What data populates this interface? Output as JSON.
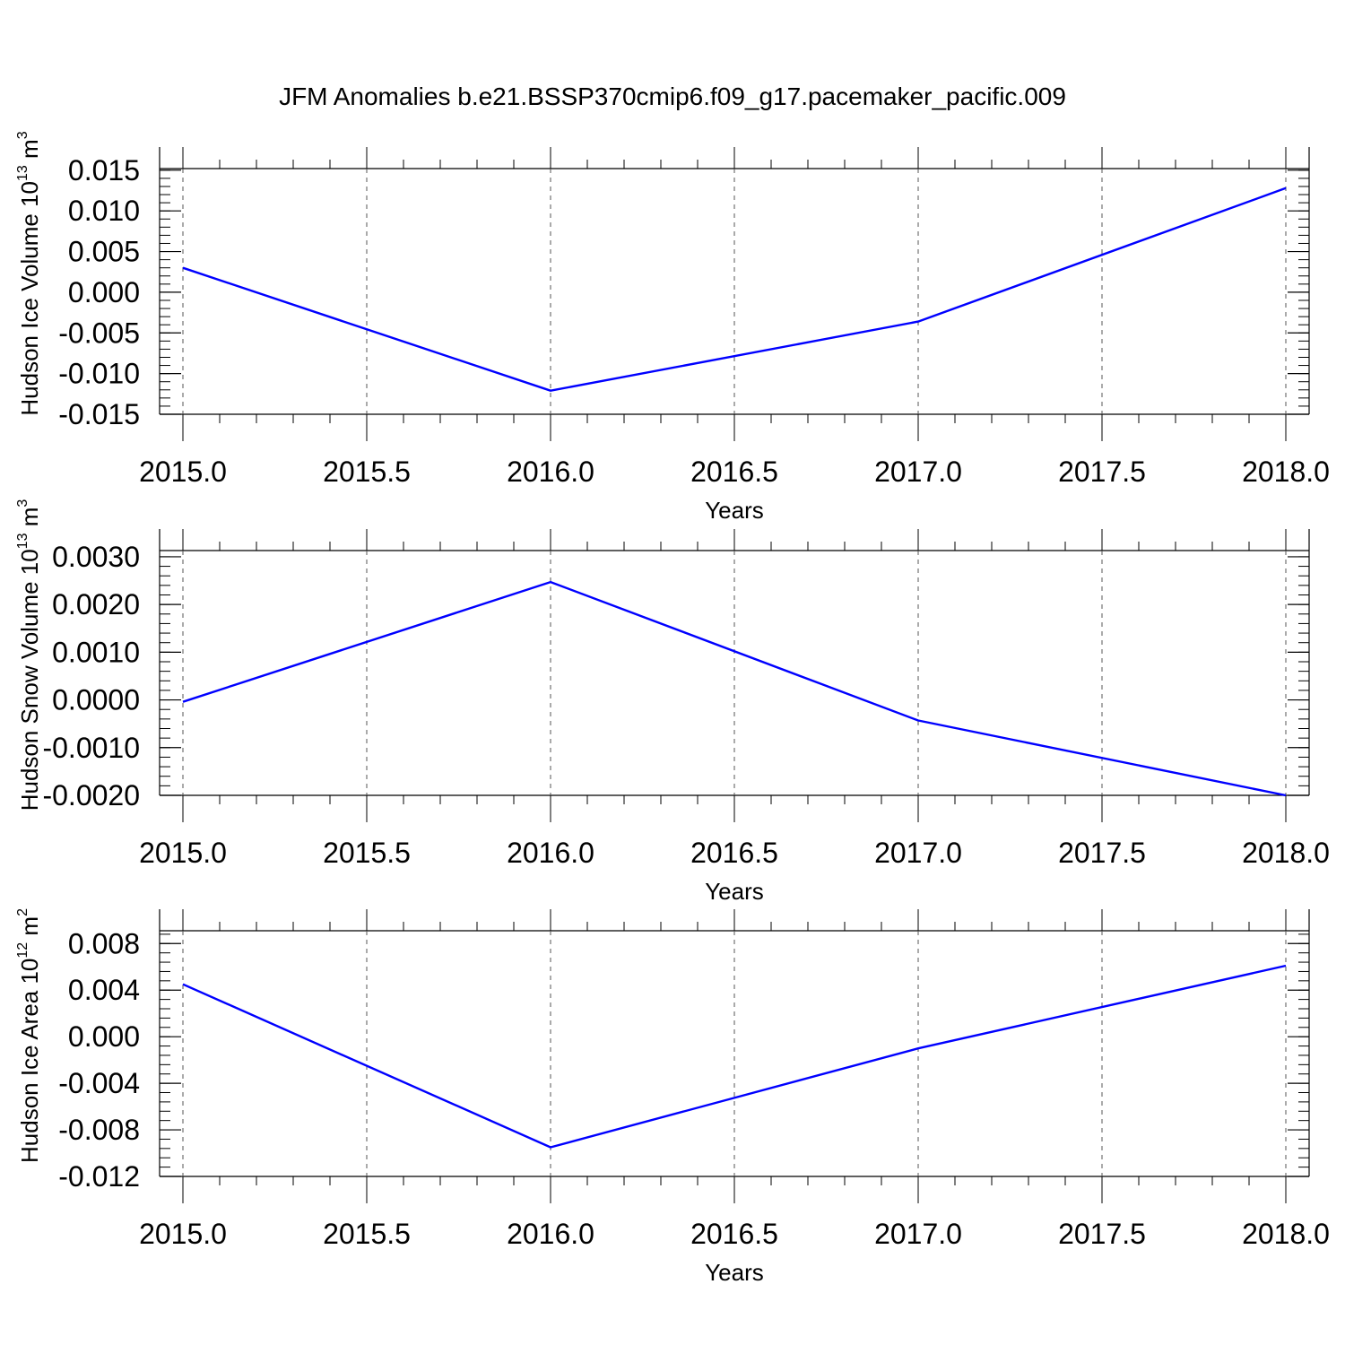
{
  "title": "JFM Anomalies b.e21.BSSP370cmip6.f09_g17.pacemaker_pacific.009",
  "line_color": "#0000ff",
  "chart_data": [
    {
      "type": "line",
      "xlabel": "Years",
      "ylabel_text": "Hudson Ice Volume 10",
      "ylabel_exp": "13",
      "ylabel_unit": " m",
      "ylabel_unit_exp": "3",
      "xlim": [
        2015.0,
        2018.0
      ],
      "ylim": [
        -0.015,
        0.0152
      ],
      "xticks": [
        2015.0,
        2015.5,
        2016.0,
        2016.5,
        2017.0,
        2017.5,
        2018.0
      ],
      "xtick_labels": [
        "2015.0",
        "2015.5",
        "2016.0",
        "2016.5",
        "2017.0",
        "2017.5",
        "2018.0"
      ],
      "yticks": [
        -0.015,
        -0.01,
        -0.005,
        0.0,
        0.005,
        0.01,
        0.015
      ],
      "ytick_labels": [
        "-0.015",
        "-0.010",
        "-0.005",
        "0.000",
        "0.005",
        "0.010",
        "0.015"
      ],
      "series": [
        {
          "x": [
            2015,
            2016,
            2017,
            2018
          ],
          "values": [
            0.003,
            -0.0121,
            -0.0036,
            0.0128
          ]
        }
      ]
    },
    {
      "type": "line",
      "xlabel": "Years",
      "ylabel_text": "Hudson Snow Volume 10",
      "ylabel_exp": "13",
      "ylabel_unit": " m",
      "ylabel_unit_exp": "3",
      "xlim": [
        2015.0,
        2018.0
      ],
      "ylim": [
        -0.002,
        0.00313
      ],
      "xticks": [
        2015.0,
        2015.5,
        2016.0,
        2016.5,
        2017.0,
        2017.5,
        2018.0
      ],
      "xtick_labels": [
        "2015.0",
        "2015.5",
        "2016.0",
        "2016.5",
        "2017.0",
        "2017.5",
        "2018.0"
      ],
      "yticks": [
        -0.002,
        -0.001,
        0.0,
        0.001,
        0.002,
        0.003
      ],
      "ytick_labels": [
        "-0.0020",
        "-0.0010",
        "0.0000",
        "0.0010",
        "0.0020",
        "0.0030"
      ],
      "series": [
        {
          "x": [
            2015,
            2016,
            2017,
            2018
          ],
          "values": [
            -4e-05,
            0.00247,
            -0.00043,
            -0.002
          ]
        }
      ]
    },
    {
      "type": "line",
      "xlabel": "Years",
      "ylabel_text": "Hudson Ice Area 10",
      "ylabel_exp": "12",
      "ylabel_unit": " m",
      "ylabel_unit_exp": "2",
      "xlim": [
        2015.0,
        2018.0
      ],
      "ylim": [
        -0.012,
        0.0091
      ],
      "xticks": [
        2015.0,
        2015.5,
        2016.0,
        2016.5,
        2017.0,
        2017.5,
        2018.0
      ],
      "xtick_labels": [
        "2015.0",
        "2015.5",
        "2016.0",
        "2016.5",
        "2017.0",
        "2017.5",
        "2018.0"
      ],
      "yticks": [
        -0.012,
        -0.008,
        -0.004,
        0.0,
        0.004,
        0.008
      ],
      "ytick_labels": [
        "-0.012",
        "-0.008",
        "-0.004",
        "0.000",
        "0.004",
        "0.008"
      ],
      "series": [
        {
          "x": [
            2015,
            2016,
            2017,
            2018
          ],
          "values": [
            0.0045,
            -0.0095,
            -0.001,
            0.0061
          ]
        }
      ]
    }
  ]
}
